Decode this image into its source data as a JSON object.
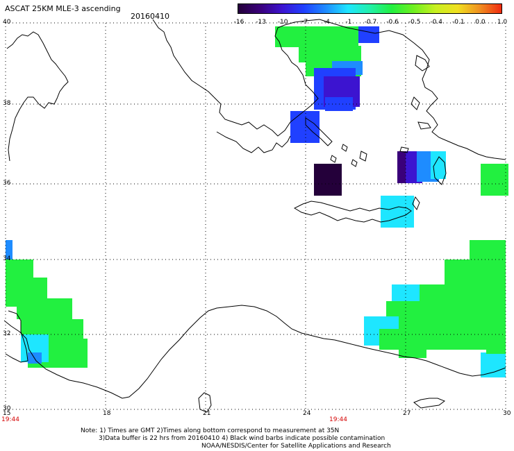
{
  "header": {
    "title": "ASCAT 25KM MLE-3 ascending",
    "date": "20160410"
  },
  "colorbar": {
    "labels": [
      "-16",
      "-13",
      "-10",
      "-7",
      "-4",
      "-1",
      "-0.7",
      "-0.6",
      "-0.5",
      "-0.4",
      "-0.1",
      "0.0",
      "1.0"
    ],
    "colors": [
      "#24003a",
      "#3a007a",
      "#3c14d0",
      "#2040ff",
      "#1e8cff",
      "#1ee6ff",
      "#22f0aa",
      "#22f040",
      "#70f020",
      "#c8f020",
      "#f0e020",
      "#f09020",
      "#f02a10"
    ]
  },
  "map": {
    "lat_labels": [
      "40",
      "38",
      "36",
      "34",
      "32",
      "30"
    ],
    "lon_labels": [
      "15",
      "18",
      "21",
      "24",
      "27",
      "30"
    ],
    "time_labels": [
      "19:44",
      "19:44"
    ]
  },
  "notes": {
    "line1": "Note: 1) Times are GMT 2)Times along bottom correspond to measurement at 35N",
    "line2": "3)Data buffer is 22 hrs from 20160410 4) Black wind barbs indicate possible contamination",
    "line3": "NOAA/NESDIS/Center for Satellite Applications and Research"
  }
}
